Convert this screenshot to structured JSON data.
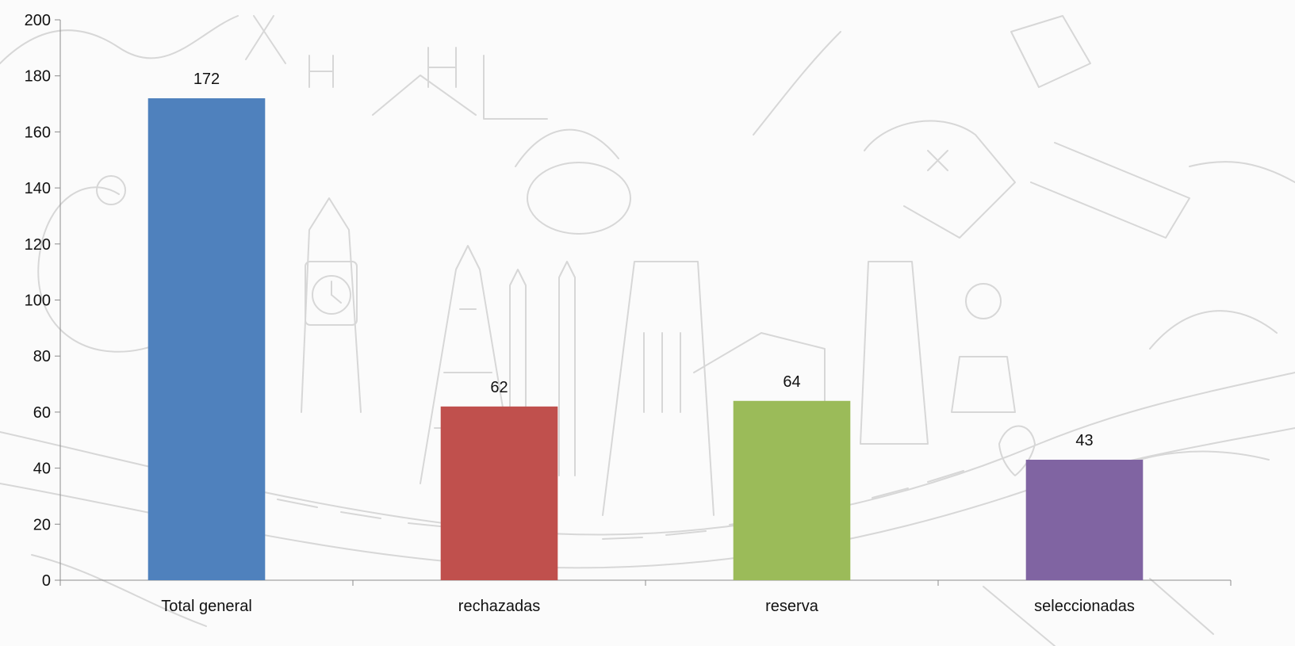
{
  "chart_data": {
    "type": "bar",
    "categories": [
      "Total general",
      "rechazadas",
      "reserva",
      "seleccionadas"
    ],
    "values": [
      172,
      62,
      64,
      43
    ],
    "ylim": [
      0,
      200
    ],
    "yticks": [
      0,
      20,
      40,
      60,
      80,
      100,
      120,
      140,
      160,
      180,
      200
    ],
    "grid": false,
    "data_labels": true,
    "colors": [
      "#4f81bd",
      "#c0504d",
      "#9bbb59",
      "#8064a2"
    ],
    "background": "light line-art travel doodle illustration (landmarks, map, road)"
  }
}
